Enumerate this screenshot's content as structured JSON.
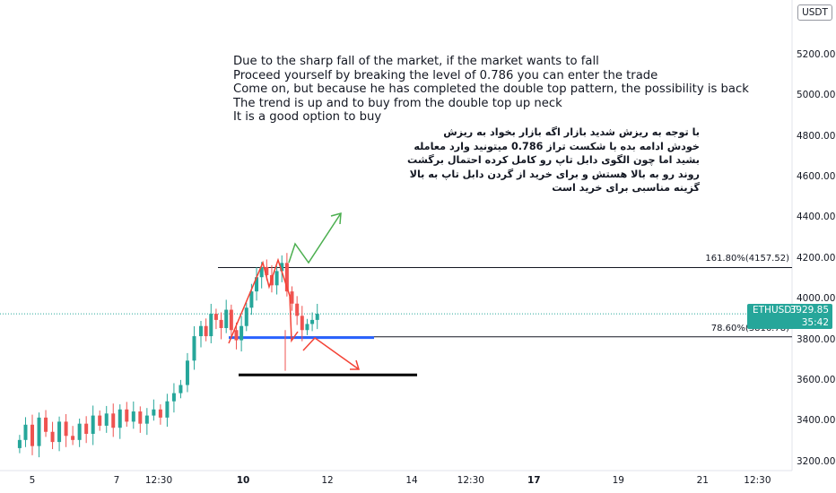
{
  "chart_data": {
    "type": "candlestick",
    "symbol": "ETHUSDT",
    "currency": "USDT",
    "last_price": "3929.85",
    "countdown": "35:42",
    "y_ticks": [
      3200,
      3400,
      3600,
      3800,
      4000,
      4200,
      4400,
      4600,
      4800,
      5000,
      5200
    ],
    "y_tick_labels": [
      "3200.00",
      "3400.00",
      "3600.00",
      "3800.00",
      "4000.00",
      "4200.00",
      "4400.00",
      "4600.00",
      "4800.00",
      "5000.00",
      "5200.00"
    ],
    "ylim": [
      3130,
      5430
    ],
    "x_ticks": [
      {
        "label": "5",
        "pos": 0.0,
        "bold": false
      },
      {
        "label": "7",
        "pos": 1.0,
        "bold": false
      },
      {
        "label": "12:30",
        "pos": 1.5,
        "bold": false
      },
      {
        "label": "10",
        "pos": 2.5,
        "bold": true
      },
      {
        "label": "12",
        "pos": 3.5,
        "bold": false
      },
      {
        "label": "14",
        "pos": 4.5,
        "bold": false
      },
      {
        "label": "12:30",
        "pos": 5.2,
        "bold": false
      },
      {
        "label": "17",
        "pos": 5.95,
        "bold": true
      },
      {
        "label": "19",
        "pos": 6.95,
        "bold": false
      },
      {
        "label": "21",
        "pos": 7.95,
        "bold": false
      },
      {
        "label": "12:30",
        "pos": 8.6,
        "bold": false
      }
    ],
    "fib_levels": [
      {
        "label": "161.80%(4157.52)",
        "price": 4157.52
      },
      {
        "label": "78.60%(3816.78)",
        "price": 3816.78
      }
    ],
    "support_zone_price": 3630,
    "candles": [
      {
        "t": -0.15,
        "c": 3310
      },
      {
        "t": -0.08,
        "c": 3385
      },
      {
        "t": 0.0,
        "c": 3280
      },
      {
        "t": 0.08,
        "c": 3420
      },
      {
        "t": 0.16,
        "c": 3350
      },
      {
        "t": 0.24,
        "c": 3300
      },
      {
        "t": 0.32,
        "c": 3400
      },
      {
        "t": 0.4,
        "c": 3330
      },
      {
        "t": 0.48,
        "c": 3310
      },
      {
        "t": 0.56,
        "c": 3390
      },
      {
        "t": 0.64,
        "c": 3340
      },
      {
        "t": 0.72,
        "c": 3430
      },
      {
        "t": 0.8,
        "c": 3380
      },
      {
        "t": 0.88,
        "c": 3440
      },
      {
        "t": 0.96,
        "c": 3370
      },
      {
        "t": 1.04,
        "c": 3460
      },
      {
        "t": 1.12,
        "c": 3400
      },
      {
        "t": 1.2,
        "c": 3450
      },
      {
        "t": 1.28,
        "c": 3390
      },
      {
        "t": 1.36,
        "c": 3430
      },
      {
        "t": 1.44,
        "c": 3460
      },
      {
        "t": 1.52,
        "c": 3420
      },
      {
        "t": 1.6,
        "c": 3500
      },
      {
        "t": 1.68,
        "c": 3540
      },
      {
        "t": 1.76,
        "c": 3580
      },
      {
        "t": 1.84,
        "c": 3700
      },
      {
        "t": 1.92,
        "c": 3820
      },
      {
        "t": 2.0,
        "c": 3870
      },
      {
        "t": 2.06,
        "c": 3820
      },
      {
        "t": 2.12,
        "c": 3930
      },
      {
        "t": 2.18,
        "c": 3900
      },
      {
        "t": 2.24,
        "c": 3860
      },
      {
        "t": 2.3,
        "c": 3950
      },
      {
        "t": 2.36,
        "c": 3850
      },
      {
        "t": 2.42,
        "c": 3800
      },
      {
        "t": 2.48,
        "c": 3870
      },
      {
        "t": 2.54,
        "c": 3960
      },
      {
        "t": 2.6,
        "c": 4040
      },
      {
        "t": 2.66,
        "c": 4110
      },
      {
        "t": 2.72,
        "c": 4160
      },
      {
        "t": 2.78,
        "c": 4120
      },
      {
        "t": 2.84,
        "c": 4070
      },
      {
        "t": 2.9,
        "c": 4140
      },
      {
        "t": 2.96,
        "c": 4180
      },
      {
        "t": 3.02,
        "c": 4040
      },
      {
        "t": 3.08,
        "c": 3980
      },
      {
        "t": 3.14,
        "c": 3920
      },
      {
        "t": 3.2,
        "c": 3850
      },
      {
        "t": 3.26,
        "c": 3880
      },
      {
        "t": 3.32,
        "c": 3900
      },
      {
        "t": 3.38,
        "c": 3930
      }
    ],
    "annotations_en": [
      "Due to the sharp fall of the market, if the market wants to fall",
      "Proceed yourself by breaking the level of 0.786 you can enter the trade",
      "Come on, but because he has completed the double top pattern, the possibility is back",
      "The trend is up and to buy from the double top up neck",
      "It is a good option to buy"
    ],
    "annotations_fa": [
      "با توجه به ریزش شدید بازار اگه بازار بخواد به ریزش",
      "خودش ادامه بده با شکست تراز 0.786 میتونید وارد معامله",
      "بشید اما چون الگوی دابل تاپ رو کامل کرده احتمال برگشت",
      "روند رو به بالا هستش و برای خرید از گردن دابل تاپ به بالا",
      "گزینه مناسبی برای خرید است"
    ],
    "colors": {
      "up": "#26a69a",
      "down": "#ef5350",
      "up_path": "#4caf50",
      "down_path": "#f44336",
      "neck_line": "#2962ff",
      "support_line": "#000000",
      "price_line": "#26a69a"
    }
  }
}
